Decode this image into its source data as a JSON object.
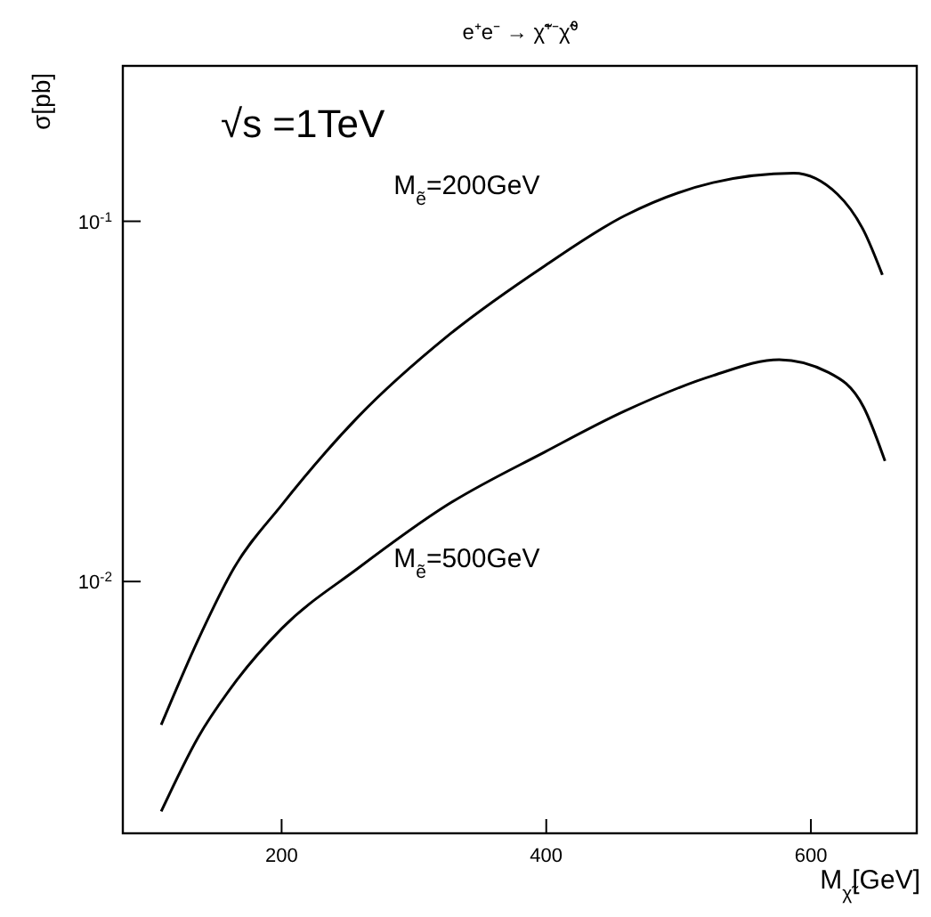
{
  "chart_data": {
    "type": "line",
    "title": "e⁺e⁻ → χ̃⁺⁻χ̃⁰",
    "xlabel": "M$_{χ̃}$[GeV]",
    "ylabel": "σ[pb]",
    "annotations": [
      "√s =1TeV"
    ],
    "log": "y",
    "grid": false,
    "marker": "none",
    "line_style": "solid",
    "xlim": [
      80,
      680
    ],
    "ylim": [
      0.002,
      0.27
    ],
    "xticks": [
      200,
      400,
      600
    ],
    "yticks": [
      {
        "value": 0.1,
        "label": "10$^{-1}$"
      },
      {
        "value": 0.01,
        "label": "10$^{-2}$"
      }
    ],
    "series": [
      {
        "name": "M$_{ẽ}$=200GeV",
        "color": "#000000",
        "x": [
          109,
          137,
          164,
          200,
          258,
          325,
          399,
          459,
          526,
          587,
          620,
          640,
          654
        ],
        "values": [
          0.004,
          0.0069,
          0.0109,
          0.0163,
          0.0287,
          0.0479,
          0.0753,
          0.1035,
          0.128,
          0.136,
          0.119,
          0.094,
          0.071
        ]
      },
      {
        "name": "M$_{ẽ}$=500GeV",
        "color": "#000000",
        "x": [
          109,
          137,
          164,
          200,
          258,
          325,
          399,
          459,
          526,
          576,
          613,
          640,
          656
        ],
        "values": [
          0.0023,
          0.0037,
          0.0052,
          0.0074,
          0.0109,
          0.0163,
          0.0229,
          0.0297,
          0.0373,
          0.0413,
          0.0381,
          0.0304,
          0.0216
        ]
      }
    ]
  }
}
